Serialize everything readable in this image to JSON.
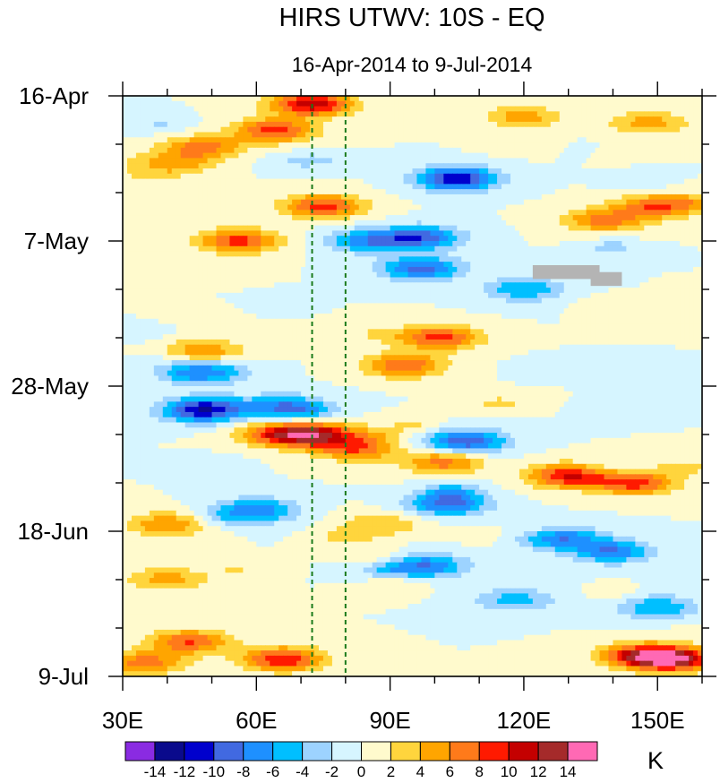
{
  "chart_data": {
    "type": "heatmap",
    "title": "HIRS UTWV: 10S - EQ",
    "subtitle": "16-Apr-2014 to 9-Jul-2014",
    "xlabel": "",
    "ylabel": "",
    "x_range": [
      30,
      160
    ],
    "x_ticks": [
      {
        "value": 30,
        "label": "30E"
      },
      {
        "value": 60,
        "label": "60E"
      },
      {
        "value": 90,
        "label": "90E"
      },
      {
        "value": 120,
        "label": "120E"
      },
      {
        "value": 150,
        "label": "150E"
      }
    ],
    "y_range_days": [
      0,
      84
    ],
    "y_ticks": [
      {
        "day": 0,
        "label": "16-Apr"
      },
      {
        "day": 21,
        "label": "7-May"
      },
      {
        "day": 42,
        "label": "28-May"
      },
      {
        "day": 63,
        "label": "18-Jun"
      },
      {
        "day": 84,
        "label": "9-Jul"
      }
    ],
    "reference_lines_lon": [
      72.5,
      80
    ],
    "colorbar": {
      "unit": "K",
      "levels": [
        -14,
        -12,
        -10,
        -8,
        -6,
        -4,
        -2,
        0,
        2,
        4,
        6,
        8,
        10,
        12,
        14
      ],
      "level_labels": [
        "-14",
        "-12",
        "-10",
        "-8",
        "-6",
        "-4",
        "-2",
        "0",
        "2",
        "4",
        "6",
        "8",
        "10",
        "12",
        "14"
      ],
      "colors": [
        "#8a2be2",
        "#0a0a8c",
        "#0000cd",
        "#4169e1",
        "#1e90ff",
        "#00bfff",
        "#9dd3ff",
        "#d6f5ff",
        "#fffacd",
        "#ffd53d",
        "#ffa500",
        "#ff7a1a",
        "#ff1a00",
        "#c40000",
        "#a52a2a",
        "#ff69b4"
      ]
    },
    "anomaly_features": [
      {
        "lon": 72,
        "day": 1.2,
        "value": 11
      },
      {
        "lon": 64,
        "day": 5,
        "value": 9
      },
      {
        "lon": 48,
        "day": 7.5,
        "value": 7
      },
      {
        "lon": 40,
        "day": 10,
        "value": 6
      },
      {
        "lon": 75,
        "day": 16,
        "value": 9
      },
      {
        "lon": 56,
        "day": 21,
        "value": 9
      },
      {
        "lon": 105,
        "day": 12,
        "value": -12
      },
      {
        "lon": 97,
        "day": 20.5,
        "value": -9
      },
      {
        "lon": 85,
        "day": 21,
        "value": -7
      },
      {
        "lon": 97,
        "day": 25,
        "value": -9
      },
      {
        "lon": 120,
        "day": 28,
        "value": -6
      },
      {
        "lon": 138,
        "day": 18,
        "value": 7
      },
      {
        "lon": 150,
        "day": 16,
        "value": 8
      },
      {
        "lon": 148,
        "day": 4,
        "value": 5
      },
      {
        "lon": 120,
        "day": 3,
        "value": 5
      },
      {
        "lon": 101,
        "day": 35,
        "value": 9
      },
      {
        "lon": 93,
        "day": 39,
        "value": 8
      },
      {
        "lon": 48,
        "day": 37,
        "value": 6
      },
      {
        "lon": 48,
        "day": 45.5,
        "value": -12
      },
      {
        "lon": 48,
        "day": 40,
        "value": -10
      },
      {
        "lon": 66,
        "day": 45,
        "value": -8
      },
      {
        "lon": 107,
        "day": 50,
        "value": -10
      },
      {
        "lon": 74,
        "day": 49,
        "value": 10
      },
      {
        "lon": 65,
        "day": 49,
        "value": 9
      },
      {
        "lon": 82,
        "day": 51,
        "value": 8
      },
      {
        "lon": 130,
        "day": 55,
        "value": 10
      },
      {
        "lon": 145,
        "day": 56,
        "value": 9
      },
      {
        "lon": 102,
        "day": 53,
        "value": 7
      },
      {
        "lon": 103,
        "day": 59,
        "value": -9
      },
      {
        "lon": 60,
        "day": 60,
        "value": -8
      },
      {
        "lon": 128,
        "day": 64,
        "value": -8
      },
      {
        "lon": 140,
        "day": 66,
        "value": -7
      },
      {
        "lon": 40,
        "day": 62,
        "value": 6
      },
      {
        "lon": 98,
        "day": 68,
        "value": -8
      },
      {
        "lon": 40,
        "day": 70,
        "value": 5
      },
      {
        "lon": 45,
        "day": 79,
        "value": 8
      },
      {
        "lon": 66,
        "day": 81.5,
        "value": 10
      },
      {
        "lon": 35,
        "day": 82,
        "value": 7
      },
      {
        "lon": 154,
        "day": 81.5,
        "value": 13
      },
      {
        "lon": 146,
        "day": 81,
        "value": 10
      },
      {
        "lon": 150,
        "day": 74,
        "value": -6
      },
      {
        "lon": 118,
        "day": 73,
        "value": -5
      },
      {
        "lon": 88,
        "day": 62,
        "value": 4
      }
    ],
    "missing_data_boxes": [
      {
        "lon_range": [
          122,
          137
        ],
        "day_range": [
          24.5,
          26.5
        ]
      },
      {
        "lon_range": [
          135,
          142
        ],
        "day_range": [
          25.5,
          27.5
        ]
      }
    ]
  }
}
